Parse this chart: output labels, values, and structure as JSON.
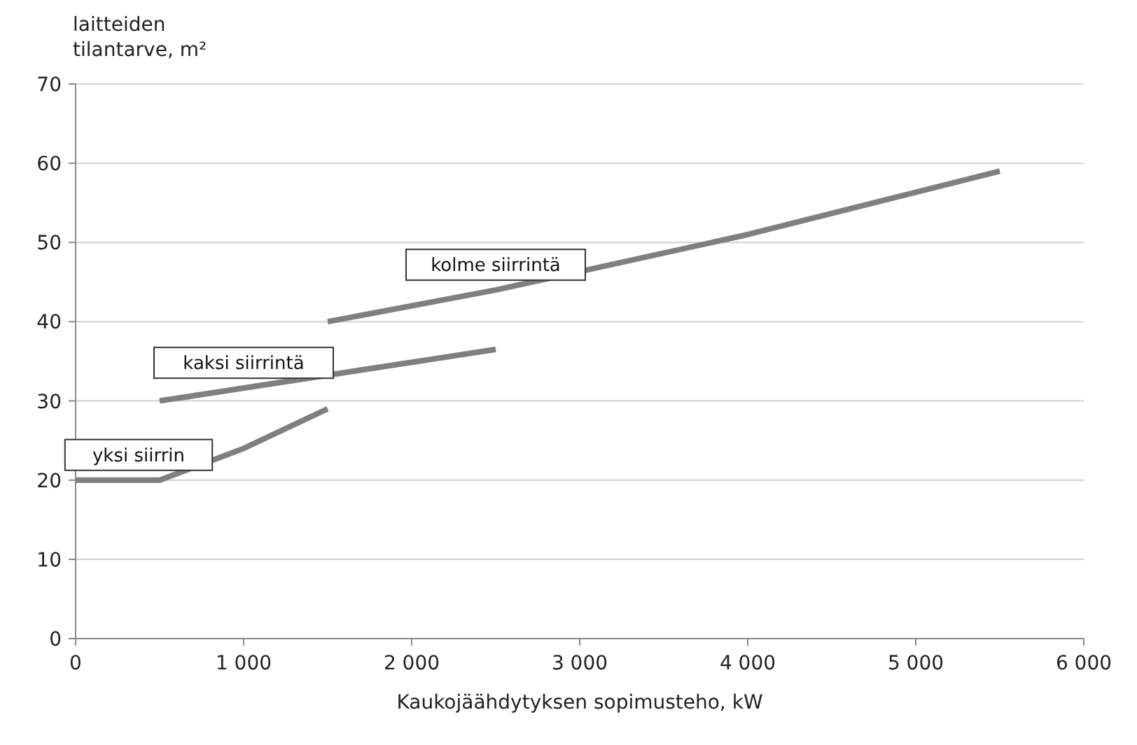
{
  "chart_data": {
    "type": "line",
    "xlabel": "Kaukojäähdytyksen sopimusteho, kW",
    "ylabel": "laitteiden\ntilantarve, m²",
    "xlim": [
      0,
      6000
    ],
    "xticks": [
      0,
      {
        "value": 1000,
        "label": "1 000"
      },
      {
        "value": 2000,
        "label": "2 000"
      },
      {
        "value": 3000,
        "label": "3 000"
      },
      {
        "value": 4000,
        "label": "4 000"
      },
      {
        "value": 5000,
        "label": "5 000"
      },
      {
        "value": 6000,
        "label": "6 000"
      }
    ],
    "ylim": [
      0,
      70
    ],
    "yticks": [
      0,
      10,
      20,
      30,
      40,
      50,
      60,
      70
    ],
    "grid": "y",
    "marker": "none",
    "line_style": "solid",
    "series": [
      {
        "name": "yksi siirrin",
        "color": "#7f7f7f",
        "x": [
          0,
          500,
          1000,
          1500
        ],
        "values": [
          20,
          20,
          24,
          29
        ]
      },
      {
        "name": "kaksi siirrintä",
        "color": "#7f7f7f",
        "x": [
          500,
          2500
        ],
        "values": [
          30,
          36.5
        ]
      },
      {
        "name": "kolme siirrintä",
        "color": "#7f7f7f",
        "x": [
          1500,
          2500,
          4000,
          5500
        ],
        "values": [
          40,
          44,
          51,
          59
        ]
      }
    ]
  }
}
